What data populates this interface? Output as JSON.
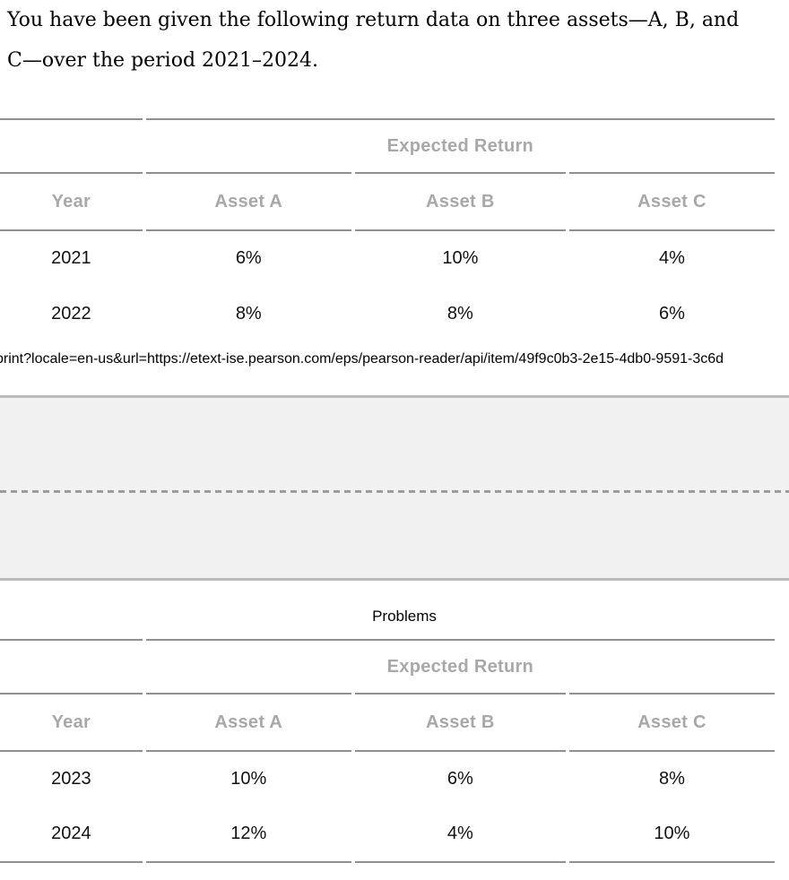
{
  "intro": {
    "lines": [
      "You have been given the following return data on three assets—A, B, and",
      "C—over the period 2021–2024."
    ]
  },
  "url_bar": {
    "text": "print?locale=en-us&url=https://etext-ise.pearson.com/eps/pearson-reader/api/item/49f9c0b3-2e15-4db0-9591-3c6d"
  },
  "section": {
    "running_header": "Problems"
  },
  "tables": {
    "group_header": "Expected Return",
    "columns": [
      "Year",
      "Asset A",
      "Asset B",
      "Asset C"
    ],
    "first": {
      "rows": [
        {
          "year": "2021",
          "a": "6%",
          "b": "10%",
          "c": "4%"
        },
        {
          "year": "2022",
          "a": "8%",
          "b": "8%",
          "c": "6%"
        }
      ]
    },
    "second": {
      "rows": [
        {
          "year": "2023",
          "a": "10%",
          "b": "6%",
          "c": "8%"
        },
        {
          "year": "2024",
          "a": "12%",
          "b": "4%",
          "c": "10%"
        }
      ]
    }
  },
  "colors": {
    "rule": "#909090",
    "header_text": "#a8a8a8",
    "body_text": "#111111",
    "band_fill": "#f1f1f1",
    "band_border": "#b7bbc0",
    "dash": "#9c9c9c"
  }
}
